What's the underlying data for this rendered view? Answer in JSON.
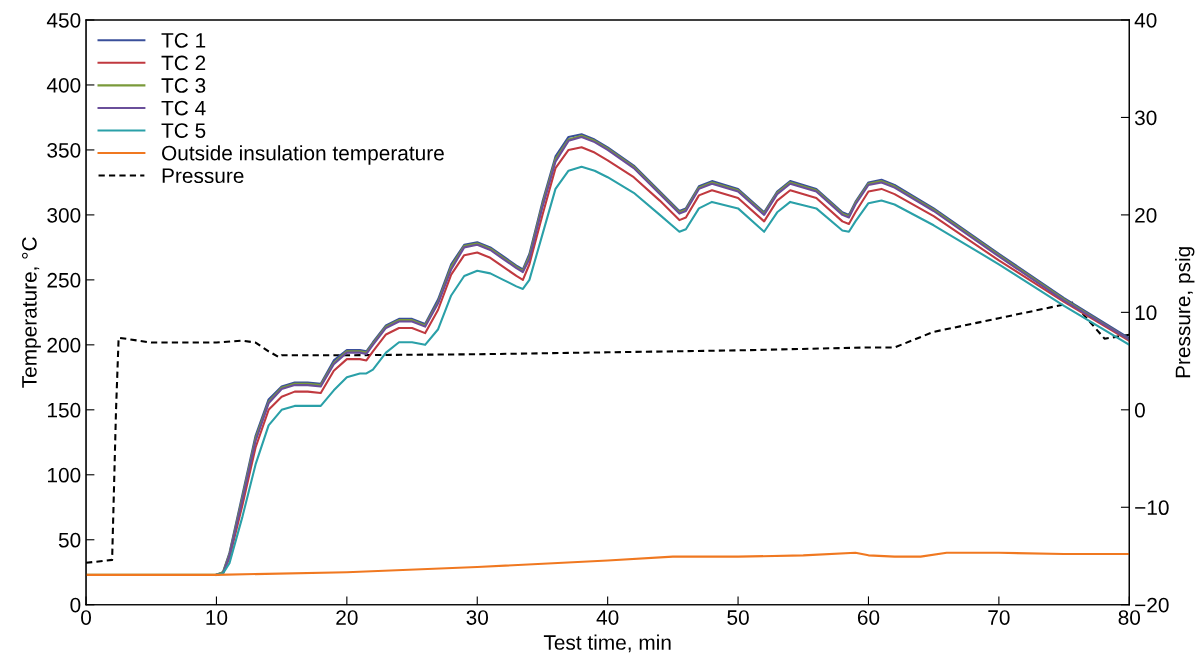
{
  "chart_data": {
    "type": "line",
    "xlabel": "Test time, min",
    "ylabel": "Temperature, °C",
    "y2label": "Pressure, psig",
    "x": [
      0,
      5,
      10,
      10.5,
      11,
      12,
      13,
      14,
      15,
      16,
      17,
      18,
      19,
      20,
      21,
      21.5,
      22,
      23,
      24,
      25,
      26,
      27,
      28,
      29,
      30,
      31,
      32,
      33,
      33.5,
      34,
      35,
      36,
      37,
      38,
      39,
      40,
      42,
      44,
      45.5,
      46,
      47,
      48,
      50,
      52,
      53,
      54,
      56,
      58,
      58.5,
      59,
      60,
      61,
      62,
      65,
      70,
      75,
      80
    ],
    "series": [
      {
        "name": "TC 1",
        "color": "#3a4f9a",
        "values": [
          null,
          null,
          23,
          25,
          40,
          85,
          130,
          158,
          168,
          171,
          171,
          170,
          188,
          196,
          196,
          195,
          202,
          215,
          220,
          220,
          216,
          235,
          262,
          277,
          279,
          275,
          268,
          261,
          258,
          270,
          310,
          345,
          360,
          362,
          358,
          352,
          338,
          318,
          303,
          305,
          322,
          326,
          320,
          302,
          318,
          326,
          320,
          302,
          300,
          310,
          325,
          327,
          323,
          305,
          270,
          236,
          205
        ]
      },
      {
        "name": "TC 2",
        "color": "#c0393f",
        "values": [
          null,
          null,
          23,
          24,
          36,
          77,
          121,
          150,
          160,
          164,
          164,
          163,
          180,
          189,
          189,
          188,
          195,
          208,
          213,
          213,
          209,
          227,
          254,
          269,
          271,
          267,
          260,
          253,
          250,
          262,
          300,
          336,
          350,
          352,
          348,
          342,
          329,
          311,
          296,
          298,
          315,
          319,
          313,
          295,
          311,
          319,
          313,
          295,
          293,
          302,
          318,
          320,
          316,
          299,
          265,
          233,
          203
        ]
      },
      {
        "name": "TC 3",
        "color": "#7a9a3a",
        "values": [
          23,
          23,
          23,
          25,
          39,
          83,
          128,
          156,
          167,
          170,
          170,
          169,
          186,
          195,
          195,
          194,
          201,
          214,
          219,
          219,
          215,
          233,
          260,
          276,
          278,
          274,
          267,
          260,
          257,
          268,
          308,
          343,
          358,
          361,
          357,
          351,
          337,
          317,
          302,
          304,
          321,
          325,
          319,
          301,
          317,
          325,
          319,
          301,
          299,
          309,
          324,
          326,
          322,
          304,
          269,
          235,
          204
        ]
      },
      {
        "name": "TC 4",
        "color": "#6a4f9a",
        "values": [
          null,
          null,
          23,
          24,
          38,
          81,
          126,
          155,
          166,
          169,
          169,
          168,
          185,
          194,
          194,
          193,
          200,
          213,
          218,
          218,
          214,
          232,
          258,
          275,
          277,
          273,
          266,
          259,
          256,
          266,
          306,
          341,
          357,
          360,
          356,
          350,
          336,
          316,
          301,
          303,
          320,
          324,
          318,
          300,
          316,
          324,
          318,
          300,
          298,
          308,
          323,
          325,
          321,
          303,
          268,
          234,
          204
        ]
      },
      {
        "name": "TC 5",
        "color": "#2aa0a8",
        "values": [
          null,
          null,
          23,
          24,
          32,
          68,
          108,
          138,
          150,
          153,
          153,
          153,
          165,
          175,
          178,
          178,
          181,
          194,
          202,
          202,
          200,
          212,
          238,
          253,
          257,
          255,
          250,
          245,
          243,
          250,
          285,
          320,
          334,
          337,
          334,
          329,
          317,
          300,
          287,
          289,
          305,
          310,
          305,
          287,
          302,
          310,
          305,
          288,
          287,
          295,
          309,
          311,
          308,
          292,
          262,
          230,
          200
        ]
      },
      {
        "name": "Outside insulation temperature",
        "color": "#f07820",
        "x": [
          0,
          10,
          20,
          30,
          40,
          45,
          50,
          55,
          59,
          60,
          62,
          64,
          66,
          70,
          75,
          80
        ],
        "values": [
          23,
          23,
          25,
          29,
          34,
          37,
          37,
          38,
          40,
          38,
          37,
          37,
          40,
          40,
          39,
          39
        ]
      },
      {
        "name": "Pressure",
        "color": "#000000",
        "axis": "y2",
        "line_style": "dashed",
        "x": [
          0,
          2,
          2.3,
          2.5,
          5,
          10,
          12,
          13,
          14,
          14.8,
          15,
          20,
          30,
          40,
          50,
          60,
          62,
          65,
          70,
          75.7,
          78.1,
          80
        ],
        "values": [
          -15.7,
          -15.4,
          0,
          7.4,
          6.9,
          6.9,
          7.1,
          6.9,
          6,
          5.4,
          5.6,
          5.6,
          5.7,
          5.9,
          6.1,
          6.4,
          6.4,
          8,
          9.4,
          11,
          7.3,
          7.7
        ]
      }
    ],
    "xlim": [
      0,
      80
    ],
    "xticks": [
      0,
      10,
      20,
      30,
      40,
      50,
      60,
      70,
      80
    ],
    "ylim": [
      0,
      450
    ],
    "yticks": [
      0,
      50,
      100,
      150,
      200,
      250,
      300,
      350,
      400,
      450
    ],
    "y2lim": [
      -20,
      40
    ],
    "y2ticks": [
      {
        "value": -20,
        "label": "−20"
      },
      {
        "value": -10,
        "label": "−10"
      },
      0,
      10,
      20,
      30,
      40
    ],
    "legend": "top left",
    "grid": false,
    "line_style": "solid",
    "marker": "none"
  }
}
